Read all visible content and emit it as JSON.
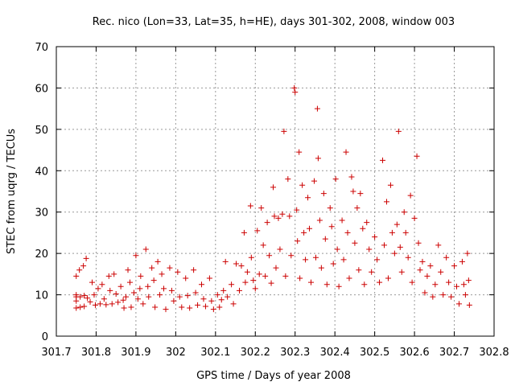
{
  "chart_data": {
    "type": "scatter",
    "title": "Rec. nico (Lon=33, Lat=35, h=HE), days 301-302, 2008, window 003",
    "xlabel": "GPS time / Days of year 2008",
    "ylabel": "STEC from uqrg / TECUs",
    "xlim": [
      301.7,
      302.8
    ],
    "ylim": [
      0,
      70
    ],
    "xticks": [
      301.7,
      301.8,
      301.9,
      302.0,
      302.1,
      302.2,
      302.3,
      302.4,
      302.5,
      302.6,
      302.7,
      302.8
    ],
    "xtick_labels": [
      "301.7",
      "301.8",
      "301.9",
      "302",
      "302.1",
      "302.2",
      "302.3",
      "302.4",
      "302.5",
      "302.6",
      "302.7",
      "302.8"
    ],
    "yticks": [
      0,
      10,
      20,
      30,
      40,
      50,
      60,
      70
    ],
    "ytick_labels": [
      "0",
      "10",
      "20",
      "30",
      "40",
      "50",
      "60",
      "70"
    ],
    "grid": true,
    "marker": "+",
    "color": "#cc0000",
    "series": [
      {
        "name": "STEC",
        "points": [
          [
            301.75,
            14.5
          ],
          [
            301.75,
            10.0
          ],
          [
            301.75,
            9.5
          ],
          [
            301.75,
            8.5
          ],
          [
            301.75,
            6.8
          ],
          [
            301.758,
            16.0
          ],
          [
            301.76,
            9.5
          ],
          [
            301.76,
            7.0
          ],
          [
            301.768,
            17.0
          ],
          [
            301.77,
            9.8
          ],
          [
            301.77,
            7.2
          ],
          [
            301.775,
            18.8
          ],
          [
            301.778,
            9.2
          ],
          [
            301.785,
            8.3
          ],
          [
            301.79,
            13.0
          ],
          [
            301.795,
            10.0
          ],
          [
            301.798,
            7.5
          ],
          [
            301.805,
            11.5
          ],
          [
            301.81,
            7.8
          ],
          [
            301.815,
            12.5
          ],
          [
            301.82,
            9.0
          ],
          [
            301.825,
            7.6
          ],
          [
            301.832,
            14.5
          ],
          [
            301.835,
            11.0
          ],
          [
            301.84,
            7.8
          ],
          [
            301.845,
            15.0
          ],
          [
            301.85,
            10.2
          ],
          [
            301.855,
            8.2
          ],
          [
            301.862,
            12.0
          ],
          [
            301.868,
            8.7
          ],
          [
            301.87,
            6.8
          ],
          [
            301.875,
            9.5
          ],
          [
            301.88,
            16.0
          ],
          [
            301.885,
            13.0
          ],
          [
            301.888,
            7.0
          ],
          [
            301.895,
            10.5
          ],
          [
            301.9,
            19.5
          ],
          [
            301.905,
            9.0
          ],
          [
            301.91,
            11.5
          ],
          [
            301.912,
            14.5
          ],
          [
            301.918,
            7.8
          ],
          [
            301.925,
            21.0
          ],
          [
            301.93,
            12.0
          ],
          [
            301.932,
            9.5
          ],
          [
            301.94,
            16.5
          ],
          [
            301.945,
            13.5
          ],
          [
            301.948,
            7.0
          ],
          [
            301.955,
            18.0
          ],
          [
            301.96,
            10.0
          ],
          [
            301.965,
            15.0
          ],
          [
            301.97,
            11.5
          ],
          [
            301.975,
            6.5
          ],
          [
            301.985,
            16.5
          ],
          [
            301.99,
            11.0
          ],
          [
            301.995,
            8.5
          ],
          [
            302.005,
            15.5
          ],
          [
            302.01,
            9.5
          ],
          [
            302.015,
            7.0
          ],
          [
            302.025,
            14.0
          ],
          [
            302.03,
            9.8
          ],
          [
            302.035,
            6.8
          ],
          [
            302.045,
            16.0
          ],
          [
            302.05,
            10.5
          ],
          [
            302.055,
            7.5
          ],
          [
            302.065,
            12.5
          ],
          [
            302.07,
            9.0
          ],
          [
            302.075,
            7.2
          ],
          [
            302.085,
            14.0
          ],
          [
            302.09,
            8.5
          ],
          [
            302.095,
            6.5
          ],
          [
            302.105,
            10.0
          ],
          [
            302.11,
            7.0
          ],
          [
            302.115,
            8.8
          ],
          [
            302.12,
            11.0
          ],
          [
            302.125,
            18.0
          ],
          [
            302.13,
            9.5
          ],
          [
            302.14,
            12.5
          ],
          [
            302.145,
            7.8
          ],
          [
            302.152,
            17.5
          ],
          [
            302.16,
            11.0
          ],
          [
            302.165,
            17.0
          ],
          [
            302.172,
            25.0
          ],
          [
            302.175,
            13.0
          ],
          [
            302.18,
            15.5
          ],
          [
            302.188,
            31.5
          ],
          [
            302.19,
            19.0
          ],
          [
            302.195,
            13.5
          ],
          [
            302.2,
            11.5
          ],
          [
            302.205,
            25.5
          ],
          [
            302.21,
            15.0
          ],
          [
            302.215,
            31.0
          ],
          [
            302.22,
            22.0
          ],
          [
            302.225,
            14.5
          ],
          [
            302.23,
            27.5
          ],
          [
            302.235,
            19.5
          ],
          [
            302.24,
            12.8
          ],
          [
            302.245,
            36.0
          ],
          [
            302.248,
            29.0
          ],
          [
            302.252,
            16.5
          ],
          [
            302.258,
            28.5
          ],
          [
            302.262,
            21.0
          ],
          [
            302.268,
            29.5
          ],
          [
            302.272,
            49.5
          ],
          [
            302.276,
            14.5
          ],
          [
            302.282,
            38.0
          ],
          [
            302.286,
            29.0
          ],
          [
            302.29,
            19.5
          ],
          [
            302.298,
            60.0
          ],
          [
            302.3,
            59.0
          ],
          [
            302.304,
            30.5
          ],
          [
            302.306,
            23.0
          ],
          [
            302.31,
            44.5
          ],
          [
            302.312,
            14.0
          ],
          [
            302.318,
            36.5
          ],
          [
            302.322,
            25.0
          ],
          [
            302.326,
            18.5
          ],
          [
            302.332,
            33.5
          ],
          [
            302.336,
            26.0
          ],
          [
            302.34,
            13.0
          ],
          [
            302.348,
            37.5
          ],
          [
            302.352,
            19.0
          ],
          [
            302.356,
            55.0
          ],
          [
            302.358,
            43.0
          ],
          [
            302.362,
            28.0
          ],
          [
            302.366,
            16.5
          ],
          [
            302.372,
            34.5
          ],
          [
            302.376,
            23.5
          ],
          [
            302.38,
            12.5
          ],
          [
            302.388,
            31.0
          ],
          [
            302.392,
            26.5
          ],
          [
            302.396,
            17.5
          ],
          [
            302.402,
            38.0
          ],
          [
            302.406,
            21.0
          ],
          [
            302.41,
            12.0
          ],
          [
            302.418,
            28.0
          ],
          [
            302.422,
            18.5
          ],
          [
            302.428,
            44.5
          ],
          [
            302.432,
            25.0
          ],
          [
            302.436,
            14.0
          ],
          [
            302.442,
            38.5
          ],
          [
            302.446,
            35.0
          ],
          [
            302.45,
            22.5
          ],
          [
            302.456,
            31.0
          ],
          [
            302.46,
            16.0
          ],
          [
            302.464,
            34.5
          ],
          [
            302.47,
            26.0
          ],
          [
            302.474,
            12.5
          ],
          [
            302.48,
            27.5
          ],
          [
            302.486,
            21.0
          ],
          [
            302.492,
            15.5
          ],
          [
            302.5,
            24.0
          ],
          [
            302.506,
            18.5
          ],
          [
            302.512,
            13.0
          ],
          [
            302.52,
            42.5
          ],
          [
            302.524,
            22.0
          ],
          [
            302.53,
            32.5
          ],
          [
            302.534,
            14.0
          ],
          [
            302.54,
            36.5
          ],
          [
            302.544,
            25.0
          ],
          [
            302.55,
            20.0
          ],
          [
            302.556,
            27.0
          ],
          [
            302.56,
            49.5
          ],
          [
            302.564,
            21.5
          ],
          [
            302.568,
            15.5
          ],
          [
            302.574,
            30.0
          ],
          [
            302.578,
            25.0
          ],
          [
            302.584,
            19.0
          ],
          [
            302.59,
            34.0
          ],
          [
            302.594,
            13.0
          ],
          [
            302.6,
            28.5
          ],
          [
            302.606,
            43.5
          ],
          [
            302.61,
            22.5
          ],
          [
            302.614,
            16.0
          ],
          [
            302.62,
            18.0
          ],
          [
            302.626,
            10.5
          ],
          [
            302.632,
            14.5
          ],
          [
            302.64,
            17.0
          ],
          [
            302.646,
            9.5
          ],
          [
            302.652,
            12.5
          ],
          [
            302.66,
            22.0
          ],
          [
            302.666,
            15.5
          ],
          [
            302.672,
            10.0
          ],
          [
            302.68,
            19.0
          ],
          [
            302.686,
            13.0
          ],
          [
            302.692,
            9.5
          ],
          [
            302.7,
            17.0
          ],
          [
            302.706,
            12.0
          ],
          [
            302.712,
            7.8
          ],
          [
            302.72,
            18.0
          ],
          [
            302.724,
            12.5
          ],
          [
            302.728,
            10.0
          ],
          [
            302.733,
            20.0
          ],
          [
            302.736,
            13.5
          ],
          [
            302.738,
            7.5
          ]
        ]
      }
    ]
  }
}
